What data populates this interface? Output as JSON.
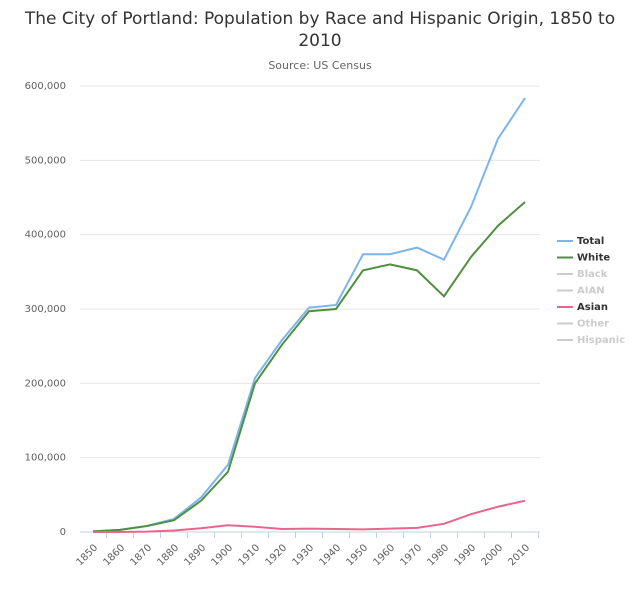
{
  "chart_data": {
    "type": "line",
    "title": "The City of Portland: Population by Race and Hispanic Origin, 1850 to 2010",
    "subtitle": "Source: US Census",
    "categories": [
      "1850",
      "1860",
      "1870",
      "1880",
      "1890",
      "1900",
      "1910",
      "1920",
      "1930",
      "1940",
      "1950",
      "1960",
      "1970",
      "1980",
      "1990",
      "2000",
      "2010"
    ],
    "series": [
      {
        "name": "Total",
        "color": "#7cb5ec",
        "visible": true,
        "values": [
          800,
          2900,
          8300,
          17600,
          46400,
          90400,
          207200,
          258300,
          301800,
          305400,
          373600,
          373700,
          382600,
          366400,
          437300,
          529100,
          583800
        ]
      },
      {
        "name": "White",
        "color": "#4f9040",
        "visible": true,
        "values": [
          800,
          2800,
          8000,
          15900,
          42000,
          81000,
          200000,
          252000,
          297000,
          300000,
          352000,
          360000,
          352000,
          317000,
          370000,
          412000,
          444000
        ]
      },
      {
        "name": "Black",
        "color": "#cccccc",
        "visible": false,
        "values": [
          null,
          null,
          null,
          null,
          null,
          null,
          null,
          null,
          null,
          null,
          null,
          null,
          null,
          null,
          null,
          null,
          null
        ]
      },
      {
        "name": "AIAN",
        "color": "#cccccc",
        "visible": false,
        "values": [
          null,
          null,
          null,
          null,
          null,
          null,
          null,
          null,
          null,
          null,
          null,
          null,
          null,
          null,
          null,
          null,
          null
        ]
      },
      {
        "name": "Asian",
        "color": "#e8668a",
        "visible": true,
        "values": [
          0,
          0,
          500,
          2000,
          5000,
          9000,
          7000,
          4000,
          4500,
          4000,
          3500,
          4500,
          5500,
          11000,
          24000,
          34000,
          42000
        ]
      },
      {
        "name": "Other",
        "color": "#cccccc",
        "visible": false,
        "values": [
          null,
          null,
          null,
          null,
          null,
          null,
          null,
          null,
          null,
          null,
          null,
          null,
          null,
          null,
          null,
          null,
          null
        ]
      },
      {
        "name": "Hispanic",
        "color": "#cccccc",
        "visible": false,
        "values": [
          null,
          null,
          null,
          null,
          null,
          null,
          null,
          null,
          null,
          null,
          null,
          null,
          null,
          null,
          null,
          null,
          null
        ]
      }
    ],
    "ylim": [
      0,
      600000
    ],
    "yticks": [
      0,
      {
        "value": 100000,
        "label": "100,000"
      },
      {
        "value": 200000,
        "label": "200,000"
      },
      {
        "value": 300000,
        "label": "300,000"
      },
      {
        "value": 400000,
        "label": "400,000"
      },
      {
        "value": 500000,
        "label": "500,000"
      },
      {
        "value": 600000,
        "label": "600,000"
      }
    ],
    "grid": true,
    "legend": "right"
  }
}
